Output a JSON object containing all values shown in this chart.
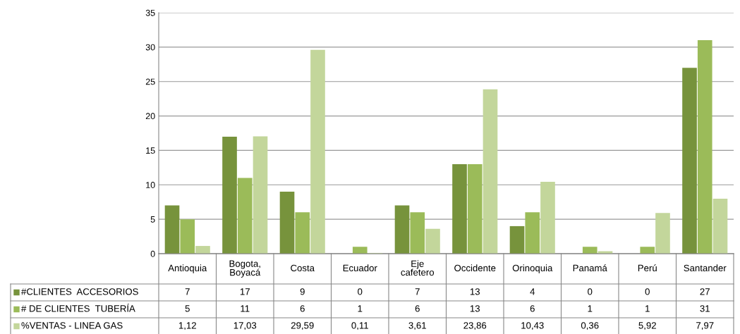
{
  "chart_data": {
    "type": "bar",
    "categories": [
      "Antioquia",
      "Bogota,\nBoyacá",
      "Costa",
      "Ecuador",
      "Eje\ncafetero",
      "Occidente",
      "Orinoquia",
      "Panamá",
      "Perú",
      "Santander"
    ],
    "series": [
      {
        "name": "#CLIENTES  ACCESORIOS",
        "color": "#77933c",
        "values": [
          7,
          17,
          9,
          0,
          7,
          13,
          4,
          0,
          0,
          27
        ],
        "value_labels": [
          "7",
          "17",
          "9",
          "0",
          "7",
          "13",
          "4",
          "0",
          "0",
          "27"
        ]
      },
      {
        "name": "# DE CLIENTES  TUBERÍA",
        "color": "#9bbb59",
        "values": [
          5,
          11,
          6,
          1,
          6,
          13,
          6,
          1,
          1,
          31
        ],
        "value_labels": [
          "5",
          "11",
          "6",
          "1",
          "6",
          "13",
          "6",
          "1",
          "1",
          "31"
        ]
      },
      {
        "name": "%VENTAS - LINEA GAS",
        "color": "#c3d69b",
        "values": [
          1.12,
          17.03,
          29.59,
          0.11,
          3.61,
          23.86,
          10.43,
          0.36,
          5.92,
          7.97
        ],
        "value_labels": [
          "1,12",
          "17,03",
          "29,59",
          "0,11",
          "3,61",
          "23,86",
          "10,43",
          "0,36",
          "5,92",
          "7,97"
        ]
      }
    ],
    "ylim": [
      0,
      35
    ],
    "yticks": [
      0,
      5,
      10,
      15,
      20,
      25,
      30,
      35
    ],
    "grid": "y",
    "legend": "bottom left"
  }
}
